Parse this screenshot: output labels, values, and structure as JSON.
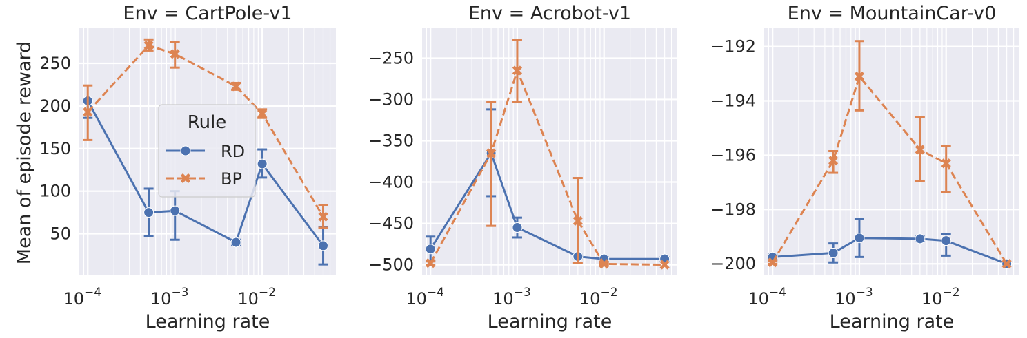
{
  "figure": {
    "ylabel": "Mean of episode reward",
    "xlabel": "Learning rate"
  },
  "legend": {
    "title": "Rule",
    "entries": [
      {
        "label": "RD",
        "color": "#4c72b0",
        "marker": "circle",
        "dash": "solid"
      },
      {
        "label": "BP",
        "color": "#dd8452",
        "marker": "x",
        "dash": "dashed"
      }
    ]
  },
  "chart_data": [
    {
      "type": "line",
      "title": "Env = CartPole-v1",
      "xlabel": "Learning rate",
      "ylabel": "Mean of episode reward",
      "xscale": "log",
      "xlim": [
        8e-05,
        0.07
      ],
      "x_ticks": [
        0.0001,
        0.001,
        0.01
      ],
      "x_tick_labels": [
        "10^{-4}",
        "10^{-3}",
        "10^{-2}"
      ],
      "ylim": [
        2,
        292
      ],
      "y_ticks": [
        50,
        100,
        150,
        200,
        250
      ],
      "y_tick_labels": [
        "50",
        "100",
        "150",
        "200",
        "250"
      ],
      "grid": true,
      "legend": "center-right",
      "series": [
        {
          "name": "RD",
          "x": [
            0.0001,
            0.0005,
            0.001,
            0.005,
            0.01,
            0.05
          ],
          "y": [
            206,
            75,
            77,
            40,
            132,
            36
          ],
          "err_low": [
            186,
            47,
            43,
            37,
            116,
            14
          ],
          "err_high": [
            207,
            103,
            100,
            43,
            149,
            58
          ]
        },
        {
          "name": "BP",
          "x": [
            0.0001,
            0.0005,
            0.001,
            0.005,
            0.01,
            0.05
          ],
          "y": [
            193,
            271,
            261,
            223,
            191,
            70
          ],
          "err_low": [
            160,
            265,
            245,
            219,
            186,
            57
          ],
          "err_high": [
            224,
            278,
            275,
            227,
            196,
            84
          ]
        }
      ]
    },
    {
      "type": "line",
      "title": "Env = Acrobot-v1",
      "xlabel": "Learning rate",
      "xscale": "log",
      "xlim": [
        8e-05,
        0.07
      ],
      "x_ticks": [
        0.0001,
        0.001,
        0.01
      ],
      "x_tick_labels": [
        "10^{-4}",
        "10^{-3}",
        "10^{-2}"
      ],
      "ylim": [
        -512,
        -213
      ],
      "y_ticks": [
        -500,
        -450,
        -400,
        -350,
        -300,
        -250
      ],
      "y_tick_labels": [
        "−500",
        "−450",
        "−400",
        "−350",
        "−300",
        "−250"
      ],
      "grid": true,
      "series": [
        {
          "name": "RD",
          "x": [
            0.0001,
            0.0005,
            0.001,
            0.005,
            0.01,
            0.05
          ],
          "y": [
            -481,
            -365,
            -455,
            -490,
            -493,
            -493
          ],
          "err_low": [
            -495,
            -417,
            -467,
            -492,
            -495,
            -495
          ],
          "err_high": [
            -466,
            -312,
            -443,
            -488,
            -491,
            -491
          ]
        },
        {
          "name": "BP",
          "x": [
            0.0001,
            0.0005,
            0.001,
            0.005,
            0.01,
            0.05
          ],
          "y": [
            -498,
            -365,
            -265,
            -447,
            -499,
            -500
          ],
          "err_low": [
            -500,
            -453,
            -303,
            -498,
            -500,
            -500
          ],
          "err_high": [
            -496,
            -303,
            -228,
            -395,
            -498,
            -500
          ]
        }
      ]
    },
    {
      "type": "line",
      "title": "Env = MountainCar-v0",
      "xlabel": "Learning rate",
      "xscale": "log",
      "xlim": [
        8e-05,
        0.07
      ],
      "x_ticks": [
        0.0001,
        0.001,
        0.01
      ],
      "x_tick_labels": [
        "10^{-4}",
        "10^{-3}",
        "10^{-2}"
      ],
      "ylim": [
        -200.4,
        -191.3
      ],
      "y_ticks": [
        -200,
        -198,
        -196,
        -194,
        -192
      ],
      "y_tick_labels": [
        "−200",
        "−198",
        "−196",
        "−194",
        "−192"
      ],
      "grid": true,
      "series": [
        {
          "name": "RD",
          "x": [
            0.0001,
            0.0005,
            0.001,
            0.005,
            0.01,
            0.05
          ],
          "y": [
            -199.75,
            -199.6,
            -199.05,
            -199.08,
            -199.15,
            -200
          ],
          "err_low": [
            -199.85,
            -199.95,
            -199.75,
            -199.15,
            -199.7,
            -200
          ],
          "err_high": [
            -199.65,
            -199.25,
            -198.35,
            -199.0,
            -198.9,
            -200
          ]
        },
        {
          "name": "BP",
          "x": [
            0.0001,
            0.0005,
            0.001,
            0.005,
            0.01,
            0.05
          ],
          "y": [
            -199.95,
            -196.2,
            -193.1,
            -195.8,
            -196.3,
            -200
          ],
          "err_low": [
            -200.0,
            -196.65,
            -194.35,
            -196.95,
            -197.35,
            -200
          ],
          "err_high": [
            -199.9,
            -195.85,
            -191.8,
            -194.6,
            -195.65,
            -200
          ]
        }
      ]
    }
  ]
}
